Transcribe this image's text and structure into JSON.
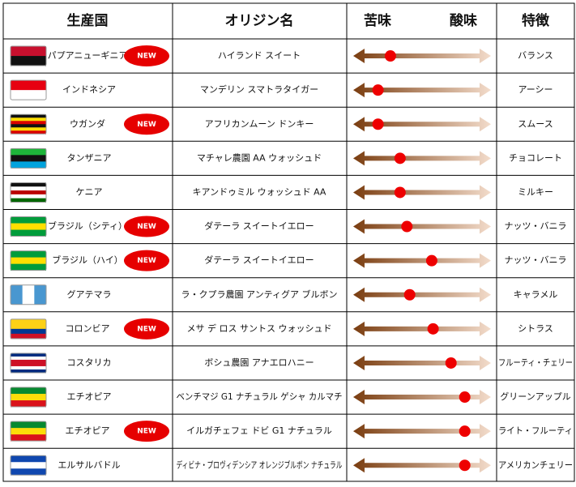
{
  "header": {
    "country": "生産国",
    "origin": "オリジン名",
    "bitter": "苦味",
    "sour": "酸味",
    "feature": "特徴"
  },
  "rows": [
    {
      "country": "パプアニューギニア",
      "badge": "NEW",
      "origin": "ハイランド スイート",
      "feature": "バランス",
      "taste": 0.27
    },
    {
      "country": "インドネシア",
      "origin": "マンデリン スマトラタイガー",
      "feature": "アーシー",
      "taste": 0.18
    },
    {
      "country": "ウガンダ",
      "badge": "NEW",
      "origin": "アフリカンムーン ドンキー",
      "feature": "スムース",
      "taste": 0.18
    },
    {
      "country": "タンザニア",
      "origin": "マチャレ農園 AA ウォッシュド",
      "feature": "チョコレート",
      "taste": 0.34
    },
    {
      "country": "ケニア",
      "origin": "キアンドゥミル ウォッシュド AA",
      "feature": "ミルキー",
      "taste": 0.34
    },
    {
      "country": "ブラジル（シティ）",
      "badge": "NEW",
      "origin": "ダテーラ スイートイエロー",
      "feature": "ナッツ・バニラ",
      "taste": 0.39
    },
    {
      "country": "ブラジル（ハイ）",
      "badge": "NEW",
      "origin": "ダテーラ スイートイエロー",
      "feature": "ナッツ・バニラ",
      "taste": 0.57
    },
    {
      "country": "グアテマラ",
      "origin": "ラ・クプラ農園 アンティグア ブルボン",
      "feature": "キャラメル",
      "taste": 0.41
    },
    {
      "country": "コロンビア",
      "badge": "NEW",
      "origin": "メサ デ ロス サントス ウォッシュド",
      "feature": "シトラス",
      "taste": 0.58
    },
    {
      "country": "コスタリカ",
      "origin": "ボシュ農園 アナエロハニー",
      "feature": "フルーティ・チェリー",
      "taste": 0.71
    },
    {
      "country": "エチオピア",
      "origin": "ベンチマジ G1 ナチュラル ゲシャ カルマチ",
      "feature": "グリーンアップル",
      "taste": 0.81
    },
    {
      "country": "エチオピア",
      "badge": "NEW",
      "origin": "イルガチェフェ ドビ G1 ナチュラル",
      "feature": "ライト・フルーティ",
      "taste": 0.81
    },
    {
      "country": "エルサルバドル",
      "origin": "ディビナ・プロヴィデンシア オレンジブルボン ナチュラル",
      "feature": "アメリカンチェリー",
      "taste": 0.81
    }
  ]
}
